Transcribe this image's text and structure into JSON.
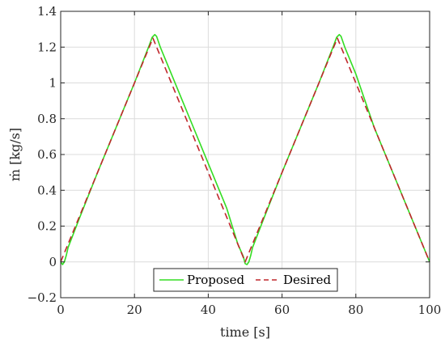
{
  "chart_data": {
    "type": "line",
    "xlabel": "time [s]",
    "ylabel": "ṁ [kg/s]",
    "xlim": [
      0,
      100
    ],
    "ylim": [
      -0.2,
      1.4
    ],
    "xticks": [
      0,
      20,
      40,
      60,
      80,
      100
    ],
    "yticks": [
      -0.2,
      0,
      0.2,
      0.4,
      0.6,
      0.8,
      1,
      1.2,
      1.4
    ],
    "xtick_labels": [
      "0",
      "20",
      "40",
      "60",
      "80",
      "100"
    ],
    "ytick_labels": [
      "−0.2",
      "0",
      "0.2",
      "0.4",
      "0.6",
      "0.8",
      "1",
      "1.2",
      "1.4"
    ],
    "grid": true,
    "legend_position": "bottom-center",
    "series": [
      {
        "name": "Proposed",
        "color": "#33dd22",
        "style": "solid",
        "x": [
          0,
          0.5,
          1,
          1.5,
          2,
          5,
          10,
          15,
          20,
          24,
          24.8,
          25.5,
          26,
          26.5,
          27,
          28,
          30,
          35,
          40,
          45,
          48,
          49.5,
          50,
          50.5,
          51,
          51.5,
          52,
          55,
          60,
          65,
          70,
          74,
          74.8,
          75.5,
          76,
          76.5,
          77,
          78,
          80,
          85,
          90,
          95,
          100
        ],
        "y": [
          0,
          -0.015,
          0.0,
          0.035,
          0.08,
          0.24,
          0.5,
          0.75,
          1.0,
          1.21,
          1.255,
          1.27,
          1.26,
          1.23,
          1.2,
          1.15,
          1.05,
          0.8,
          0.55,
          0.3,
          0.1,
          0.03,
          -0.01,
          -0.015,
          0.0,
          0.035,
          0.08,
          0.24,
          0.5,
          0.75,
          1.0,
          1.21,
          1.255,
          1.27,
          1.26,
          1.23,
          1.2,
          1.15,
          1.05,
          0.75,
          0.5,
          0.25,
          0
        ]
      },
      {
        "name": "Desired",
        "color": "#c0262b",
        "style": "dashed",
        "x": [
          0,
          25,
          50,
          75,
          100
        ],
        "y": [
          0,
          1.25,
          0,
          1.25,
          0
        ]
      }
    ]
  }
}
